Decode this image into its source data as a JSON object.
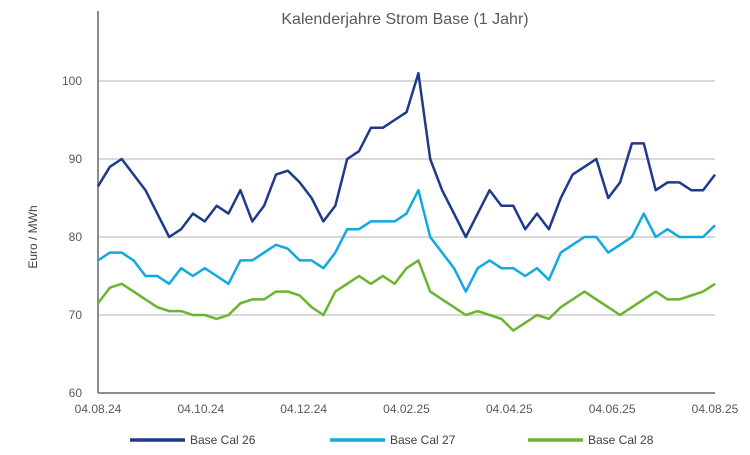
{
  "chart_data": {
    "type": "line",
    "title": "Kalenderjahre Strom Base (1 Jahr)",
    "xlabel": "",
    "ylabel": "Euro / MWh",
    "ylim": [
      60,
      100
    ],
    "yticks": [
      60,
      70,
      80,
      90,
      100
    ],
    "xtick_labels": [
      "04.08.24",
      "04.10.24",
      "04.12.24",
      "04.02.25",
      "04.04.25",
      "04.06.25",
      "04.08.25"
    ],
    "x_unit": "weeks since 04.08.24",
    "grid": true,
    "legend": "bottom",
    "series": [
      {
        "name": "Base Cal 26",
        "color": "#1f3a8a",
        "values": [
          86.5,
          89,
          90,
          88,
          86,
          83,
          80,
          81,
          83,
          82,
          84,
          83,
          86,
          82,
          84,
          88,
          88.5,
          87,
          85,
          82,
          84,
          90,
          91,
          94,
          94,
          95,
          96,
          101,
          90,
          86,
          83,
          80,
          83,
          86,
          84,
          84,
          81,
          83,
          81,
          85,
          88,
          89,
          90,
          85,
          87,
          92,
          92,
          86,
          87,
          87,
          86,
          86,
          88
        ]
      },
      {
        "name": "Base Cal 27",
        "color": "#12a8e0",
        "values": [
          77,
          78,
          78,
          77,
          75,
          75,
          74,
          76,
          75,
          76,
          75,
          74,
          77,
          77,
          78,
          79,
          78.5,
          77,
          77,
          76,
          78,
          81,
          81,
          82,
          82,
          82,
          83,
          86,
          80,
          78,
          76,
          73,
          76,
          77,
          76,
          76,
          75,
          76,
          74.5,
          78,
          79,
          80,
          80,
          78,
          79,
          80,
          83,
          80,
          81,
          80,
          80,
          80,
          81.5
        ]
      },
      {
        "name": "Base Cal 28",
        "color": "#6cb42e",
        "values": [
          71.5,
          73.5,
          74,
          73,
          72,
          71,
          70.5,
          70.5,
          70,
          70,
          69.5,
          70,
          71.5,
          72,
          72,
          73,
          73,
          72.5,
          71,
          70,
          73,
          74,
          75,
          74,
          75,
          74,
          76,
          77,
          73,
          72,
          71,
          70,
          70.5,
          70,
          69.5,
          68,
          69,
          70,
          69.5,
          71,
          72,
          73,
          72,
          71,
          70,
          71,
          72,
          73,
          72,
          72,
          72.5,
          73,
          74
        ]
      }
    ]
  }
}
